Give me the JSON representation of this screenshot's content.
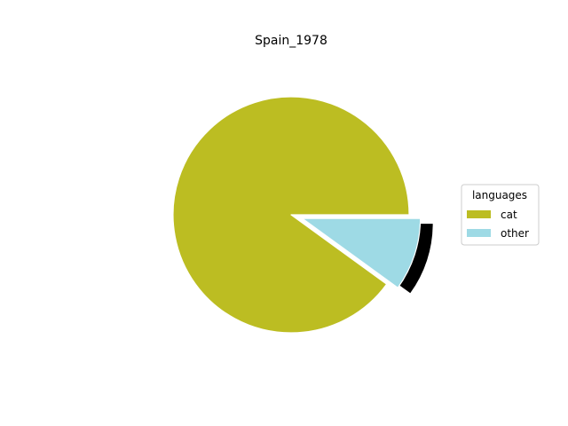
{
  "chart_data": {
    "type": "pie",
    "title": "Spain_1978",
    "slices": [
      {
        "label": "cat",
        "value": 90,
        "color": "#bcbd22",
        "exploded": false
      },
      {
        "label": "other",
        "value": 10,
        "color": "#9edae5",
        "exploded": true
      }
    ],
    "start_angle_deg": 0,
    "direction": "counterclockwise",
    "shadow_color": "#000000",
    "legend": {
      "title": "languages",
      "placement": "center-right",
      "entries": [
        "cat",
        "other"
      ]
    }
  }
}
